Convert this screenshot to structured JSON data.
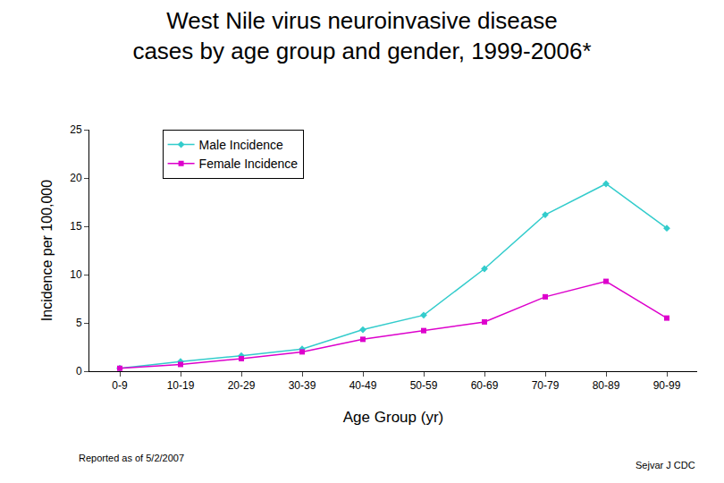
{
  "chart_data": {
    "type": "line",
    "title": "West Nile virus neuroinvasive disease cases by age group and gender, 1999-2006*",
    "x_label": "Age Group (yr)",
    "y_label": "Incidence per 100,000",
    "categories": [
      "0-9",
      "10-19",
      "20-29",
      "30-39",
      "40-49",
      "50-59",
      "60-69",
      "70-79",
      "80-89",
      "90-99"
    ],
    "series": [
      {
        "name": "Male Incidence",
        "color": "#33cccc",
        "marker": "diamond",
        "values": [
          0.3,
          1.0,
          1.6,
          2.3,
          4.3,
          5.8,
          10.6,
          16.2,
          19.4,
          14.8
        ]
      },
      {
        "name": "Female Incidence",
        "color": "#dd00cc",
        "marker": "square",
        "values": [
          0.3,
          0.7,
          1.3,
          2.0,
          3.3,
          4.2,
          5.1,
          7.7,
          9.3,
          5.5
        ]
      }
    ],
    "ylim": [
      0,
      25
    ],
    "yticks": [
      0,
      5,
      10,
      15,
      20,
      25
    ],
    "grid": false,
    "legend": "upper left",
    "annotations": [
      "Reported as of 5/2/2007",
      "Sejvar J CDC"
    ]
  }
}
